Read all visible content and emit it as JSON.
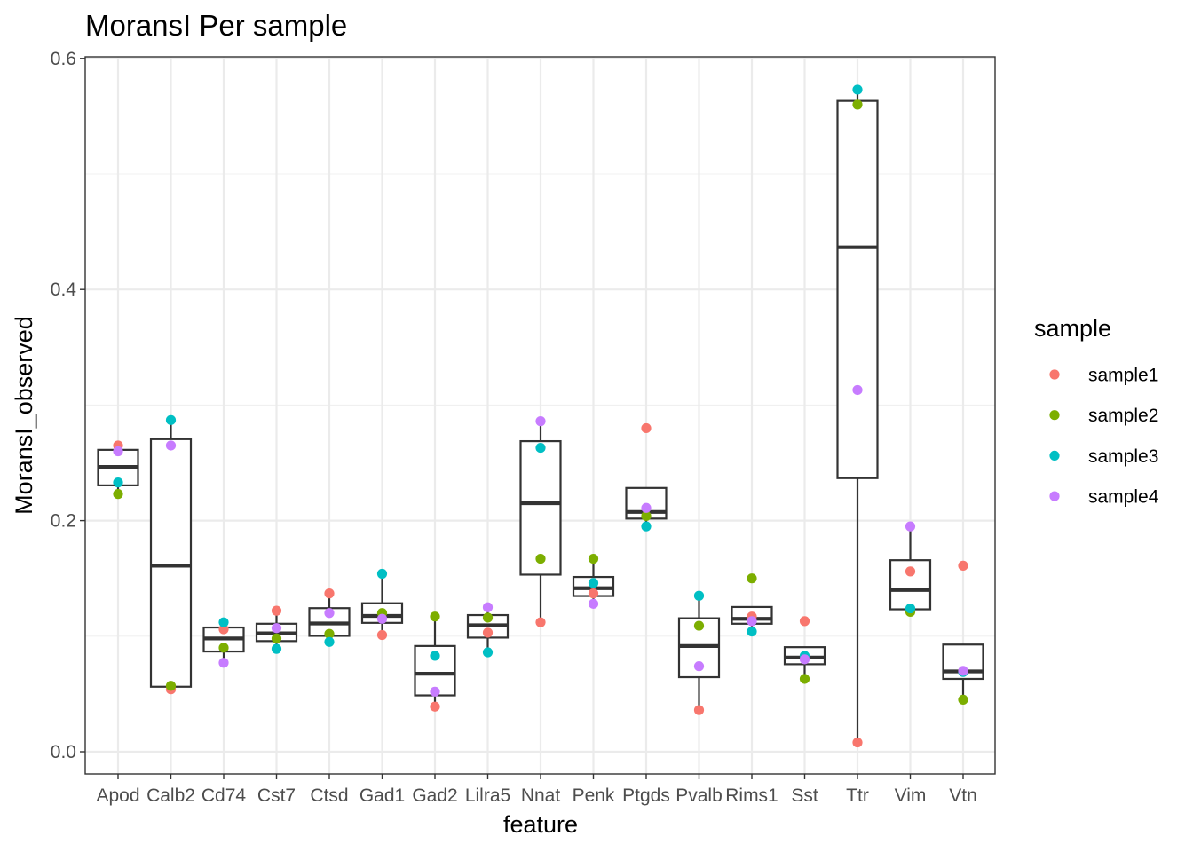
{
  "chart_data": {
    "type": "box",
    "title": "MoransI Per sample",
    "xlabel": "feature",
    "ylabel": "MoransI_observed",
    "ylim": [
      -0.02,
      0.6
    ],
    "yticks": [
      0.0,
      0.2,
      0.4,
      0.6
    ],
    "ytick_labels": [
      "0.0",
      "0.2",
      "0.4",
      "0.6"
    ],
    "grid": true,
    "legend": {
      "title": "sample",
      "placement": "right",
      "entries": [
        {
          "name": "sample1",
          "color": "#F8766D"
        },
        {
          "name": "sample2",
          "color": "#7CAE00"
        },
        {
          "name": "sample3",
          "color": "#00BFC4"
        },
        {
          "name": "sample4",
          "color": "#C77CFF"
        }
      ]
    },
    "categories": [
      "Apod",
      "Calb2",
      "Cd74",
      "Cst7",
      "Ctsd",
      "Gad1",
      "Gad2",
      "Lilra5",
      "Nnat",
      "Penk",
      "Ptgds",
      "Pvalb",
      "Rims1",
      "Sst",
      "Ttr",
      "Vim",
      "Vtn"
    ],
    "series": [
      {
        "name": "sample1",
        "values": [
          0.265,
          0.054,
          0.106,
          0.122,
          0.137,
          0.101,
          0.039,
          0.103,
          0.112,
          0.137,
          0.28,
          0.036,
          0.117,
          0.113,
          0.008,
          0.156,
          0.161
        ]
      },
      {
        "name": "sample2",
        "values": [
          0.223,
          0.057,
          0.09,
          0.098,
          0.102,
          0.12,
          0.117,
          0.116,
          0.167,
          0.167,
          0.204,
          0.109,
          0.15,
          0.063,
          0.56,
          0.121,
          0.045
        ]
      },
      {
        "name": "sample3",
        "values": [
          0.233,
          0.287,
          0.112,
          0.089,
          0.095,
          0.154,
          0.083,
          0.086,
          0.263,
          0.146,
          0.195,
          0.135,
          0.104,
          0.083,
          0.573,
          0.124,
          0.069
        ]
      },
      {
        "name": "sample4",
        "values": [
          0.26,
          0.265,
          0.077,
          0.107,
          0.12,
          0.115,
          0.052,
          0.125,
          0.286,
          0.128,
          0.211,
          0.074,
          0.113,
          0.08,
          0.313,
          0.195,
          0.07
        ]
      }
    ]
  }
}
